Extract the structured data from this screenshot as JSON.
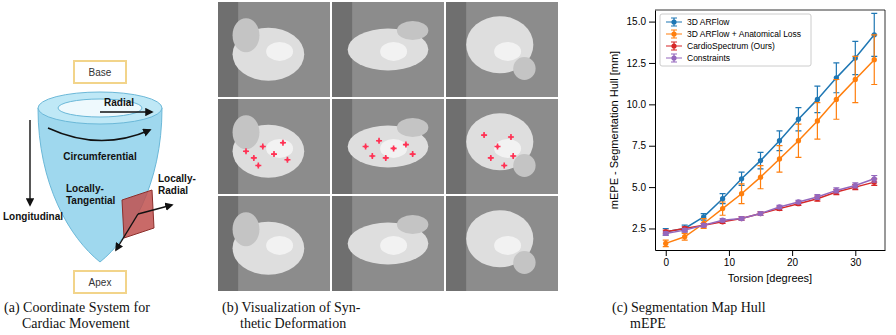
{
  "captions": [
    [
      "(a) Coordinate System for",
      "Cardiac Movement"
    ],
    [
      "(b) Visualization of Syn-",
      "thetic Deformation"
    ],
    [
      "(c) Segmentation Map Hull",
      "mEPE"
    ]
  ],
  "diagram": {
    "base": "Base",
    "apex": "Apex",
    "radial": "Radial",
    "circumferential": "Circumferential",
    "longitudinal": "Longitudinal",
    "locally_tangential": "Locally-Tangential",
    "locally_radial": "Locally-Radial"
  },
  "chart_data": {
    "type": "line",
    "x_label": "Torsion [degrees]",
    "y_label": "mEPE - Segmentation Hull [mm]",
    "x": [
      0,
      3,
      6,
      9,
      12,
      15,
      18,
      21,
      24,
      27,
      30,
      33
    ],
    "series": [
      {
        "name": "3D ARFlow",
        "color": "#1f77b4",
        "marker": "circle",
        "line_style": "solid",
        "values": [
          2.3,
          2.5,
          3.2,
          4.3,
          5.5,
          6.6,
          7.8,
          9.1,
          10.3,
          11.6,
          12.8,
          14.2
        ],
        "errors": [
          0.2,
          0.2,
          0.2,
          0.3,
          0.4,
          0.5,
          0.6,
          0.7,
          0.8,
          0.9,
          1.0,
          1.3
        ]
      },
      {
        "name": "3D ARFlow + Anatomical Loss",
        "color": "#ff7f0e",
        "marker": "circle",
        "line_style": "solid",
        "values": [
          1.6,
          2.0,
          2.8,
          3.7,
          4.6,
          5.6,
          6.7,
          7.8,
          9.0,
          10.3,
          11.5,
          12.7
        ],
        "errors": [
          0.2,
          0.2,
          0.3,
          0.4,
          0.6,
          0.7,
          0.8,
          1.0,
          1.1,
          1.2,
          1.4,
          1.5
        ]
      },
      {
        "name": "CardioSpectrum (Ours)",
        "color": "#d62728",
        "marker": "circle",
        "line_style": "solid",
        "values": [
          2.3,
          2.5,
          2.7,
          2.9,
          3.1,
          3.4,
          3.7,
          4.0,
          4.3,
          4.7,
          5.0,
          5.3
        ],
        "errors": [
          0.1,
          0.1,
          0.1,
          0.1,
          0.1,
          0.1,
          0.1,
          0.1,
          0.15,
          0.15,
          0.15,
          0.2
        ]
      },
      {
        "name": "Constraints",
        "color": "#9467bd",
        "marker": "circle",
        "line_style": "solid",
        "values": [
          2.2,
          2.4,
          2.7,
          3.0,
          3.1,
          3.4,
          3.8,
          4.1,
          4.4,
          4.8,
          5.1,
          5.5
        ],
        "errors": [
          0.1,
          0.1,
          0.1,
          0.1,
          0.1,
          0.1,
          0.1,
          0.1,
          0.15,
          0.15,
          0.15,
          0.2
        ]
      }
    ],
    "xlim": [
      -1.7,
      34.7
    ],
    "ylim": [
      1.2,
      15.7
    ],
    "xticks": [
      0,
      10,
      20,
      30
    ],
    "yticks": [
      {
        "value": 2.5,
        "label": "2.5"
      },
      {
        "value": 5,
        "label": "5.0"
      },
      {
        "value": 7.5,
        "label": "7.5"
      },
      {
        "value": 10,
        "label": "10.0"
      },
      {
        "value": 12.5,
        "label": "12.5"
      },
      {
        "value": 15,
        "label": "15.0"
      }
    ],
    "grid": false,
    "legend": "upper left"
  }
}
